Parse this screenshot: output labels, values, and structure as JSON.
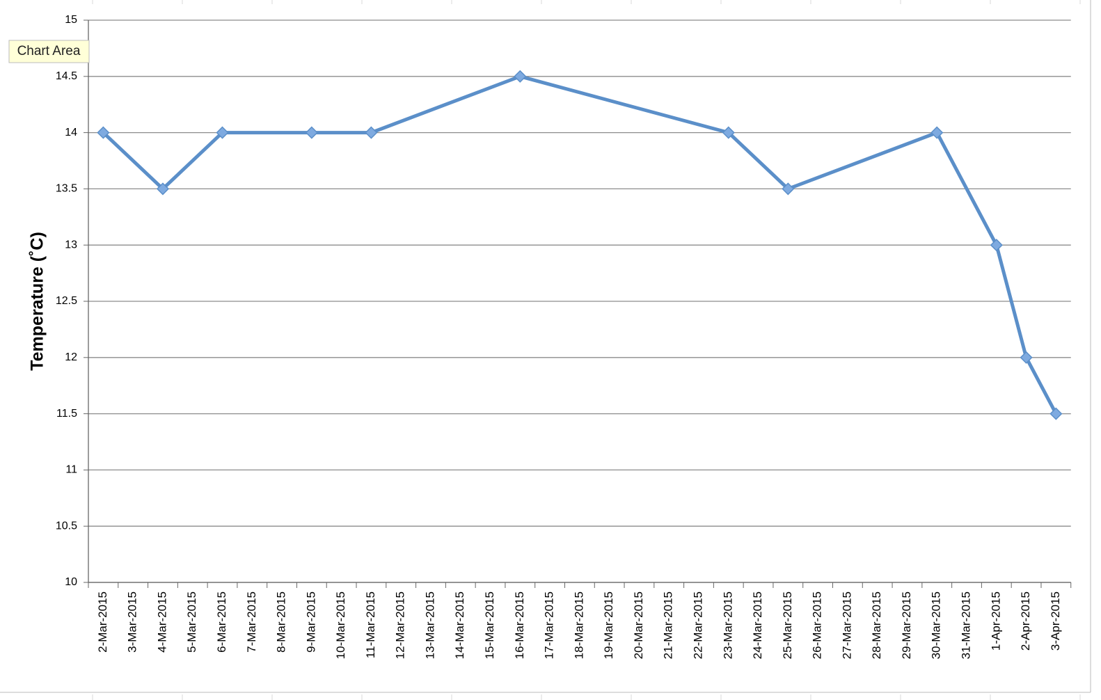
{
  "tooltip": "Chart Area",
  "chart_data": {
    "type": "line",
    "y_label": "Temperature (˚C)",
    "x": [
      "2-Mar-2015",
      "4-Mar-2015",
      "6-Mar-2015",
      "9-Mar-2015",
      "11-Mar-2015",
      "16-Mar-2015",
      "23-Mar-2015",
      "25-Mar-2015",
      "30-Mar-2015",
      "1-Apr-2015",
      "2-Apr-2015",
      "3-Apr-2015"
    ],
    "values": [
      14,
      13.5,
      14,
      14,
      14,
      14.5,
      14,
      13.5,
      14,
      13,
      12,
      11.5
    ],
    "color": "#5b8fc9",
    "xticks": [
      "2-Mar-2015",
      "3-Mar-2015",
      "4-Mar-2015",
      "5-Mar-2015",
      "6-Mar-2015",
      "7-Mar-2015",
      "8-Mar-2015",
      "9-Mar-2015",
      "10-Mar-2015",
      "11-Mar-2015",
      "12-Mar-2015",
      "13-Mar-2015",
      "14-Mar-2015",
      "15-Mar-2015",
      "16-Mar-2015",
      "17-Mar-2015",
      "18-Mar-2015",
      "19-Mar-2015",
      "20-Mar-2015",
      "21-Mar-2015",
      "22-Mar-2015",
      "23-Mar-2015",
      "24-Mar-2015",
      "25-Mar-2015",
      "26-Mar-2015",
      "27-Mar-2015",
      "28-Mar-2015",
      "29-Mar-2015",
      "30-Mar-2015",
      "31-Mar-2015",
      "1-Apr-2015",
      "2-Apr-2015",
      "3-Apr-2015"
    ],
    "ylim": [
      10,
      15
    ],
    "yticks": [
      10,
      10.5,
      11,
      11.5,
      12,
      12.5,
      13,
      13.5,
      14,
      14.5,
      15
    ],
    "grid": true
  }
}
